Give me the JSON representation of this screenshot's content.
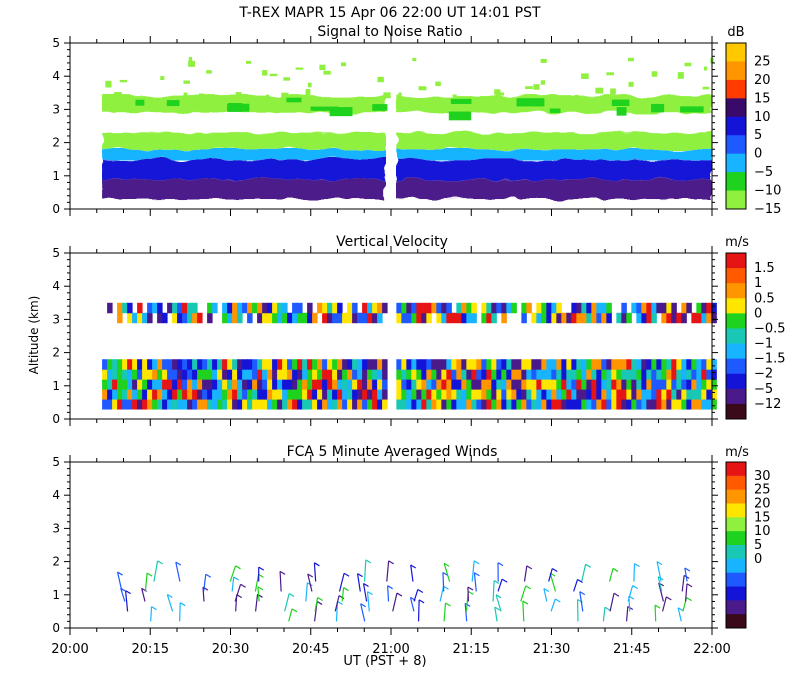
{
  "header": {
    "title": "T-REX   MAPR 15 Apr 06   22:00 UT   14:01   PST"
  },
  "x_axis": {
    "label": "UT  (PST + 8)",
    "ticks": [
      "20:00",
      "20:15",
      "20:30",
      "20:45",
      "21:00",
      "21:15",
      "21:30",
      "21:45",
      "22:00"
    ]
  },
  "y_axis": {
    "label": "Altitude (km)",
    "ticks": [
      "0",
      "1",
      "2",
      "3",
      "4",
      "5"
    ]
  },
  "colors": {
    "purple": "#4b1a8a",
    "darkpurple": "#3a0a6a",
    "blue": "#1414d8",
    "mblue": "#1e5aff",
    "cyan": "#19b4ff",
    "teal": "#19c8b4",
    "green": "#1ed21e",
    "lgreen": "#90f040",
    "yellow": "#ffe600",
    "orange": "#ff9600",
    "dorange": "#ff5a00",
    "red": "#e61414",
    "darkred": "#3a0a1a"
  },
  "chart_data": [
    {
      "type": "heatmap",
      "title": "Signal to Noise Ratio",
      "unit": "dB",
      "xlim": [
        "20:00",
        "22:00"
      ],
      "ylim": [
        0,
        5
      ],
      "data_gap": [
        "20:59",
        "21:05"
      ],
      "colorbar": {
        "labels": [
          "25",
          "20",
          "15",
          "10",
          "5",
          "0",
          "−5",
          "−10",
          "−15"
        ],
        "colors": [
          "#ffc800",
          "#ff9600",
          "#ff3c00",
          "#3a0a6a",
          "#1414d8",
          "#1e5aff",
          "#19b4ff",
          "#1ed21e",
          "#90f040"
        ]
      },
      "layers": [
        {
          "alt_km": [
            0.3,
            0.9
          ],
          "dB": 12,
          "color": "purple"
        },
        {
          "alt_km": [
            0.9,
            1.5
          ],
          "dB": 5,
          "color": "blue"
        },
        {
          "alt_km": [
            1.5,
            1.8
          ],
          "dB": 0,
          "color": "cyan"
        },
        {
          "alt_km": [
            1.8,
            2.3
          ],
          "dB": -12,
          "color": "lgreen"
        },
        {
          "alt_km": [
            2.3,
            2.9
          ],
          "dB": null,
          "color": "none"
        },
        {
          "alt_km": [
            2.9,
            3.4
          ],
          "dB": -12,
          "color": "lgreen"
        }
      ]
    },
    {
      "type": "heatmap",
      "title": "Vertical Velocity",
      "unit": "m/s",
      "xlim": [
        "20:00",
        "22:00"
      ],
      "ylim": [
        0,
        5
      ],
      "data_gap": [
        "20:59",
        "21:05"
      ],
      "colorbar": {
        "labels": [
          "1.5",
          "1",
          "0.5",
          "0",
          "−0.5",
          "−1",
          "−1.5",
          "−2",
          "−5",
          "−12"
        ],
        "colors": [
          "#e61414",
          "#ff5a00",
          "#ff9600",
          "#ffe600",
          "#1ed21e",
          "#19c8b4",
          "#19b4ff",
          "#1e5aff",
          "#1414d8",
          "#4b1a8a",
          "#3a0a1a"
        ]
      },
      "layers": [
        {
          "alt_km": [
            0.3,
            1.8
          ],
          "range_m_s": [
            -5,
            1.5
          ],
          "color": "mixed"
        },
        {
          "alt_km": [
            1.8,
            2.9
          ],
          "range_m_s": null,
          "color": "none"
        },
        {
          "alt_km": [
            2.9,
            3.5
          ],
          "range_m_s": [
            -2,
            1.5
          ],
          "color": "mixed"
        }
      ]
    },
    {
      "type": "scatter",
      "title": "FCA 5 Minute Averaged Winds",
      "unit": "m/s",
      "xlim": [
        "20:00",
        "22:00"
      ],
      "ylim": [
        0,
        5
      ],
      "colorbar": {
        "labels": [
          "30",
          "25",
          "20",
          "15",
          "10",
          "5",
          "0"
        ],
        "colors": [
          "#e61414",
          "#ff5a00",
          "#ff9600",
          "#ffe600",
          "#90f040",
          "#1ed21e",
          "#19c8b4",
          "#19b4ff",
          "#1e5aff",
          "#1414d8",
          "#4b1a8a",
          "#3a0a1a"
        ]
      },
      "wind_barbs": {
        "times_min": [
          10,
          15,
          20,
          25,
          30,
          35,
          40,
          45,
          50,
          55,
          60,
          65,
          70,
          75,
          80,
          85,
          90,
          95,
          100,
          105,
          110,
          115
        ],
        "altitudes_km": [
          0.2,
          0.5,
          0.8,
          1.1,
          1.4
        ],
        "speed_range_m_s": [
          3,
          15
        ]
      }
    }
  ]
}
